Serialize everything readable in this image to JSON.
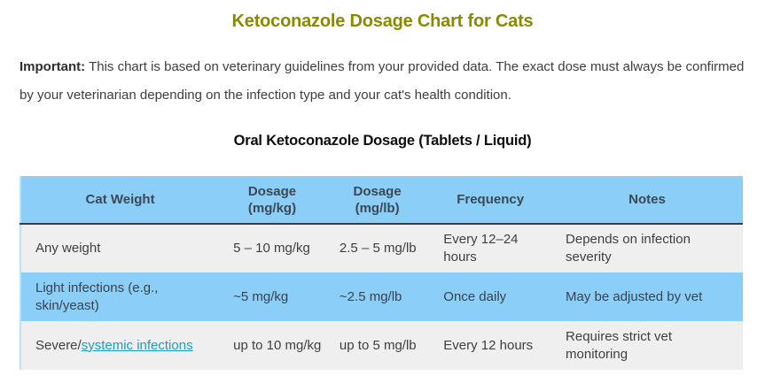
{
  "page_title": "Ketoconazole Dosage Chart for Cats",
  "notice": {
    "label": "Important:",
    "text": "This chart is based on veterinary guidelines from your provided data. The exact dose must always be confirmed by your veterinarian depending on the infection type and your cat's health condition."
  },
  "section": {
    "title": "Oral Ketoconazole Dosage (Tablets / Liquid)"
  },
  "dosage_table": {
    "headers": [
      "Cat Weight",
      "Dosage (mg/kg)",
      "Dosage (mg/lb)",
      "Frequency",
      "Notes"
    ],
    "rows": [
      {
        "cat_weight": "Any weight",
        "dosage_mg_kg": "5 – 10 mg/kg",
        "dosage_mg_lb": "2.5 – 5 mg/lb",
        "frequency": "Every 12–24 hours",
        "notes": "Depends on infection severity"
      },
      {
        "cat_weight": "Light infections (e.g., skin/yeast)",
        "dosage_mg_kg": "~5 mg/kg",
        "dosage_mg_lb": "~2.5 mg/lb",
        "frequency": "Once daily",
        "notes": "May be adjusted by vet"
      },
      {
        "cat_weight_prefix": "Severe/",
        "cat_weight_link": "systemic infections",
        "dosage_mg_kg": "up to 10 mg/kg",
        "dosage_mg_lb": "up to 5 mg/lb",
        "frequency": "Every 12 hours",
        "notes": "Requires strict vet monitoring"
      }
    ]
  },
  "colors": {
    "title": "#8a8a00",
    "body_text": "#3e3e3e",
    "table_header_bg": "#8bcef7",
    "row_stripe_bg": "#efefef",
    "row_highlight_bg": "#8bcef7",
    "header_divider": "#353b48",
    "table_left_border": "#b9e1f8",
    "link": "#1a9fc0"
  }
}
